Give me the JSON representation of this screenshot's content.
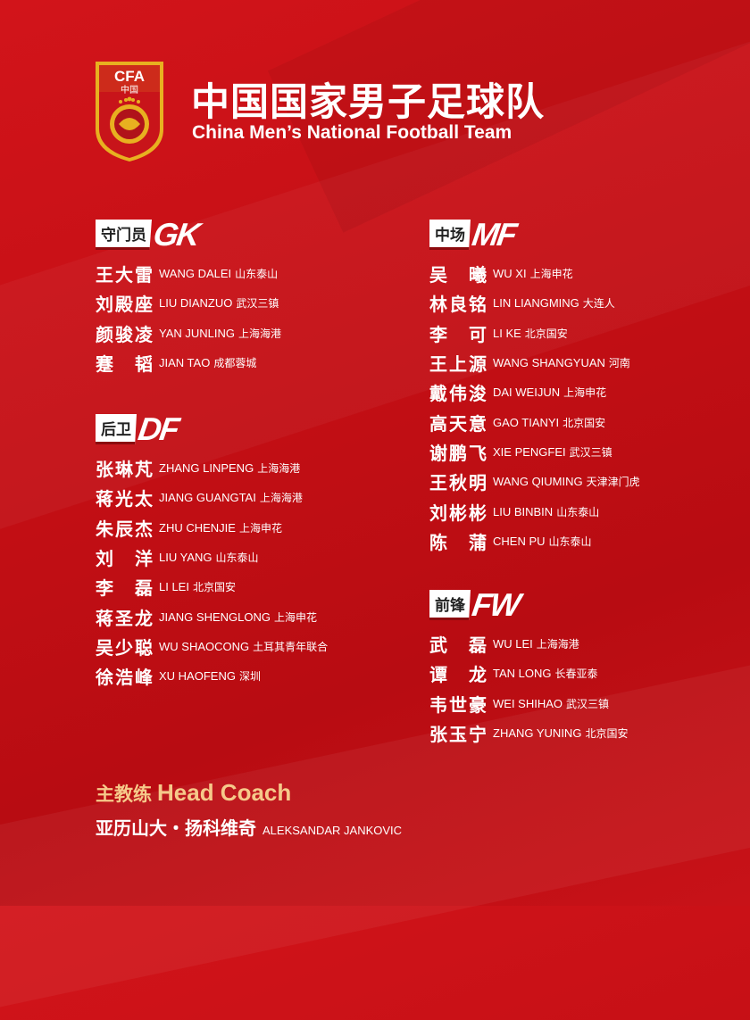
{
  "header": {
    "logo_text": "CFA 中国",
    "title_cn": "中国国家男子足球队",
    "title_en": "China Men’s National Football Team"
  },
  "colors": {
    "background": "#c40f15",
    "coach_accent": "#f6c98a",
    "logo_gold": "#e8b020"
  },
  "sections": [
    {
      "label_cn": "守门员",
      "code": "GK",
      "players": [
        {
          "cn": "王大雷",
          "en": "WANG DALEI",
          "club": "山东泰山"
        },
        {
          "cn": "刘殿座",
          "en": "LIU DIANZUO",
          "club": "武汉三镇"
        },
        {
          "cn": "颜骏凌",
          "en": "YAN JUNLING",
          "club": "上海海港"
        },
        {
          "cn": "蹇韬",
          "en": "JIAN TAO",
          "club": "成都蓉城"
        }
      ]
    },
    {
      "label_cn": "后卫",
      "code": "DF",
      "players": [
        {
          "cn": "张琳芃",
          "en": "ZHANG LINPENG",
          "club": "上海海港"
        },
        {
          "cn": "蒋光太",
          "en": "JIANG GUANGTAI",
          "club": "上海海港"
        },
        {
          "cn": "朱辰杰",
          "en": "ZHU CHENJIE",
          "club": "上海申花"
        },
        {
          "cn": "刘洋",
          "en": "LIU YANG",
          "club": "山东泰山"
        },
        {
          "cn": "李磊",
          "en": "LI LEI",
          "club": "北京国安"
        },
        {
          "cn": "蒋圣龙",
          "en": "JIANG SHENGLONG",
          "club": "上海申花"
        },
        {
          "cn": "吴少聪",
          "en": "WU SHAOCONG",
          "club": "土耳其青年联合"
        },
        {
          "cn": "徐浩峰",
          "en": "XU HAOFENG",
          "club": "深圳"
        }
      ]
    },
    {
      "label_cn": "中场",
      "code": "MF",
      "players": [
        {
          "cn": "吴曦",
          "en": "WU XI",
          "club": "上海申花"
        },
        {
          "cn": "林良铭",
          "en": "LIN LIANGMING",
          "club": "大连人"
        },
        {
          "cn": "李可",
          "en": "LI KE",
          "club": "北京国安"
        },
        {
          "cn": "王上源",
          "en": "WANG SHANGYUAN",
          "club": "河南"
        },
        {
          "cn": "戴伟浚",
          "en": "DAI WEIJUN",
          "club": "上海申花"
        },
        {
          "cn": "高天意",
          "en": "GAO TIANYI",
          "club": "北京国安"
        },
        {
          "cn": "谢鹏飞",
          "en": "XIE PENGFEI",
          "club": "武汉三镇"
        },
        {
          "cn": "王秋明",
          "en": "WANG QIUMING",
          "club": "天津津门虎"
        },
        {
          "cn": "刘彬彬",
          "en": "LIU BINBIN",
          "club": "山东泰山"
        },
        {
          "cn": "陈蒲",
          "en": "CHEN PU",
          "club": "山东泰山"
        }
      ]
    },
    {
      "label_cn": "前锋",
      "code": "FW",
      "players": [
        {
          "cn": "武磊",
          "en": "WU LEI",
          "club": "上海海港"
        },
        {
          "cn": "谭龙",
          "en": "TAN LONG",
          "club": "长春亚泰"
        },
        {
          "cn": "韦世豪",
          "en": "WEI SHIHAO",
          "club": "武汉三镇"
        },
        {
          "cn": "张玉宁",
          "en": "ZHANG YUNING",
          "club": "北京国安"
        }
      ]
    }
  ],
  "coach": {
    "label_cn": "主教练",
    "label_en": "Head Coach",
    "name_cn": "亚历山大・扬科维奇",
    "name_en": "ALEKSANDAR JANKOVIC"
  }
}
